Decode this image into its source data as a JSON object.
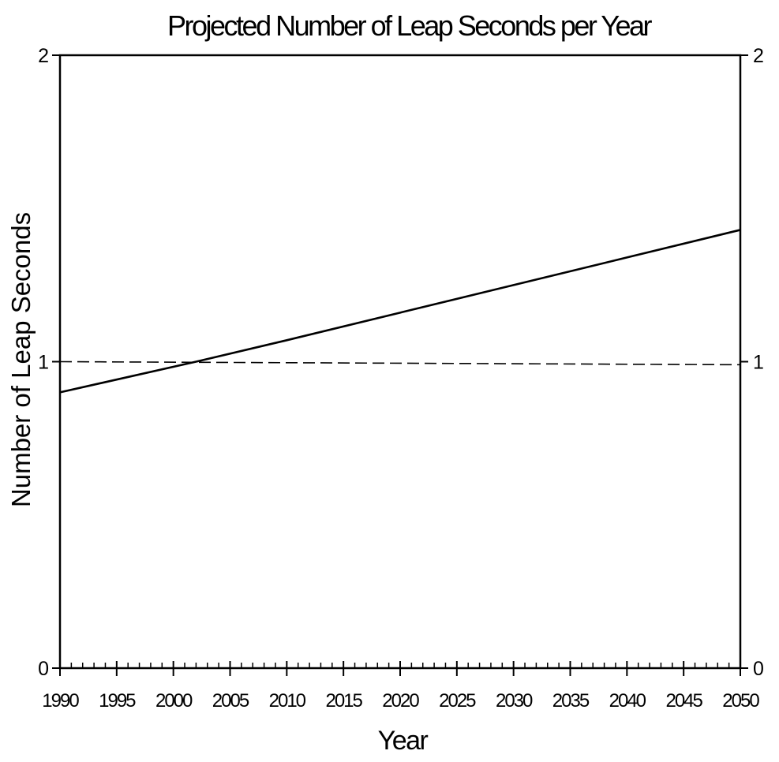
{
  "chart_data": {
    "type": "line",
    "title": "Projected Number of Leap Seconds per Year",
    "xlabel": "Year",
    "ylabel": "Number of Leap Seconds",
    "xlim": [
      1990,
      2050
    ],
    "ylim": [
      0,
      2
    ],
    "x_ticks": [
      1990,
      1995,
      2000,
      2005,
      2010,
      2015,
      2020,
      2025,
      2030,
      2035,
      2040,
      2045,
      2050
    ],
    "x_tick_labels": [
      "1990",
      "1995",
      "2000",
      "2005",
      "2010",
      "2015",
      "2020",
      "2025",
      "2030",
      "2035",
      "2040",
      "2045",
      "2050"
    ],
    "y_ticks": [
      0,
      1,
      2
    ],
    "y_tick_labels": [
      "0",
      "1",
      "2"
    ],
    "right_axis": {
      "ticks": [
        0,
        1,
        2
      ],
      "tick_labels": [
        "0",
        "1",
        "2"
      ]
    },
    "x_minor_tick_step": 1,
    "grid": false,
    "series": [
      {
        "style": "solid",
        "color": "#000000",
        "x": [
          1990,
          2002,
          2010,
          2020,
          2030,
          2040,
          2050
        ],
        "y": [
          0.9,
          1.0,
          1.07,
          1.16,
          1.25,
          1.34,
          1.43
        ]
      },
      {
        "style": "dashed",
        "color": "#000000",
        "x": [
          1990,
          2050
        ],
        "y": [
          1.0,
          0.99
        ]
      }
    ]
  }
}
